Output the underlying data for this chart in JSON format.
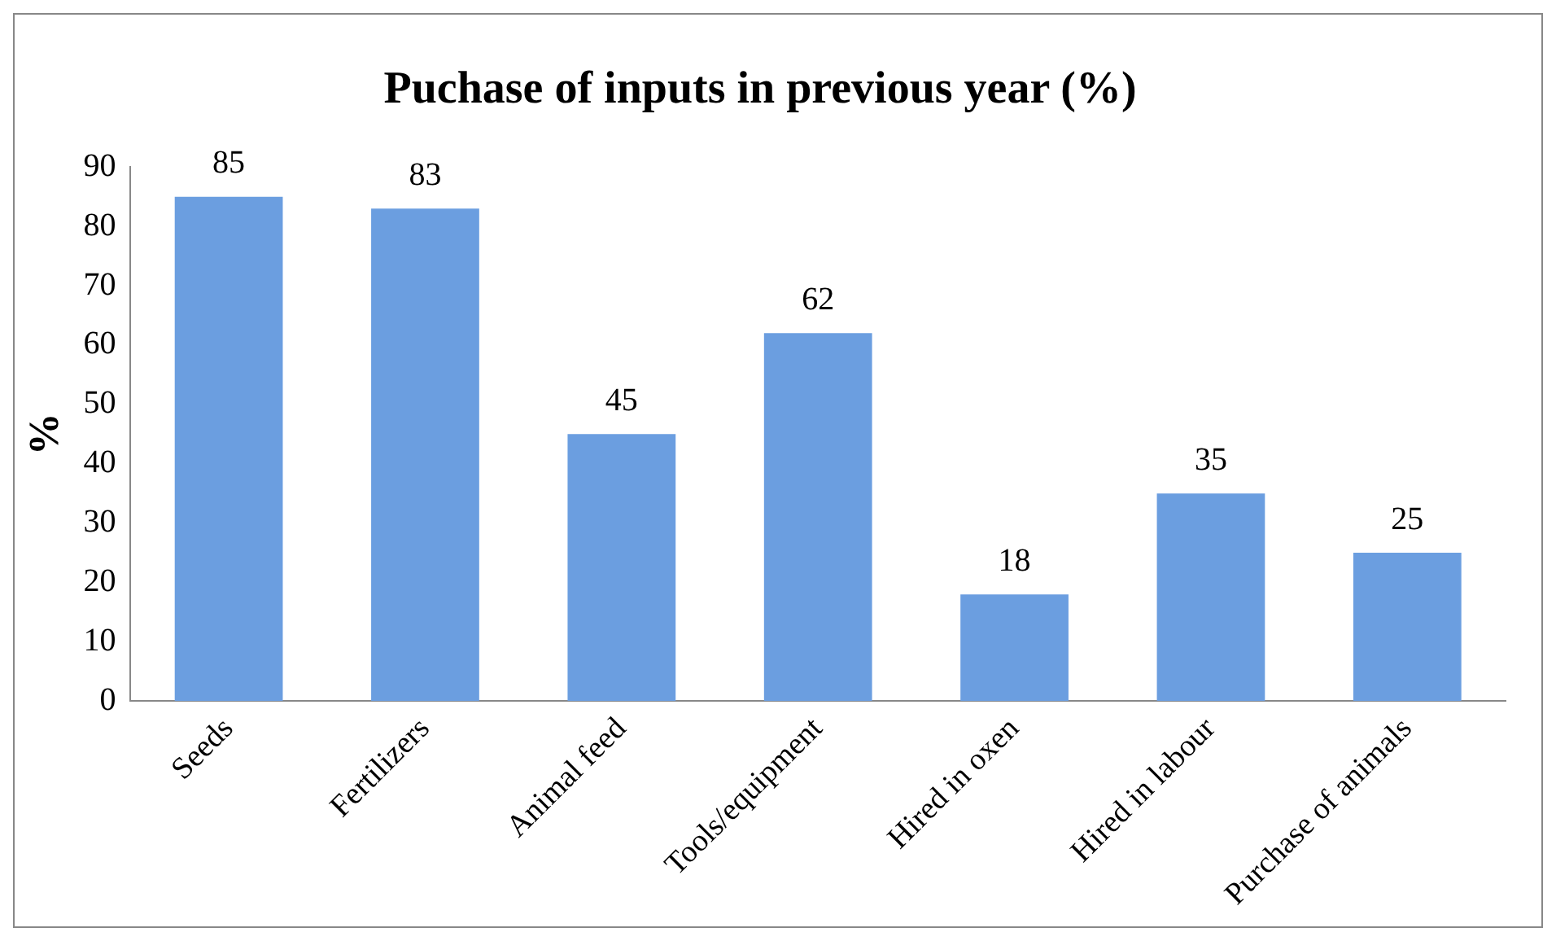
{
  "chart_data": {
    "type": "bar",
    "title": "Puchase of inputs in previous year (%)",
    "ylabel": "%",
    "categories": [
      "Seeds",
      "Fertilizers",
      "Animal feed",
      "Tools/equipment",
      "Hired in oxen",
      "Hired in labour",
      "Purchase of animals"
    ],
    "values": [
      85,
      83,
      45,
      62,
      18,
      35,
      25
    ],
    "color": "#6b9ee0",
    "ylim": [
      0,
      90
    ],
    "yticks": [
      0,
      10,
      20,
      30,
      40,
      50,
      60,
      70,
      80,
      90
    ],
    "data_labels": true,
    "grid": false,
    "legend": false
  }
}
